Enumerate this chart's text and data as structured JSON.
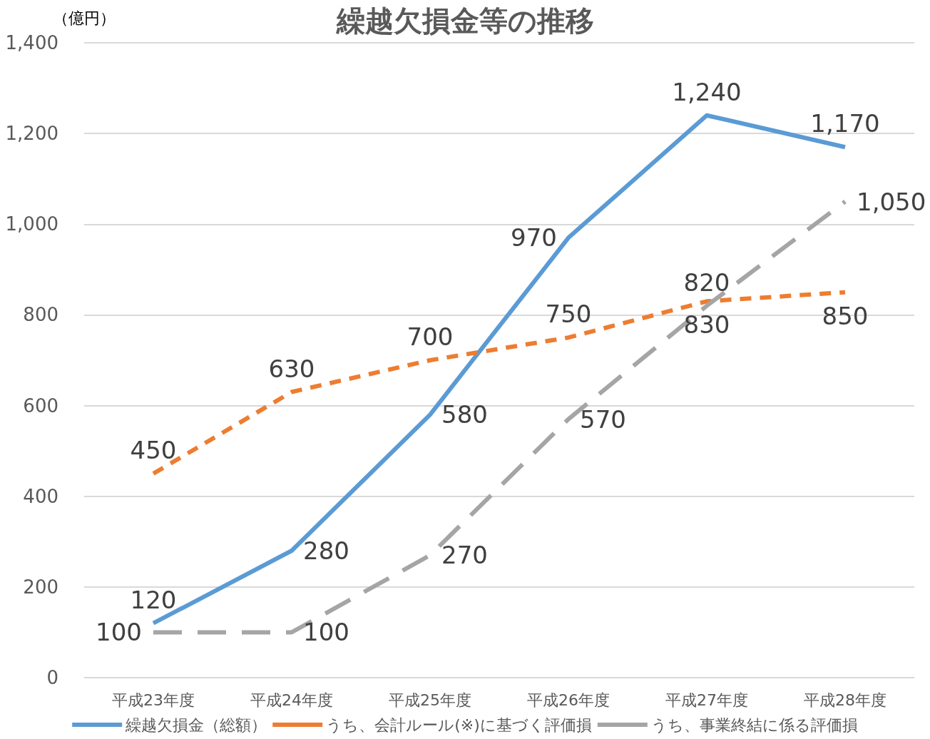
{
  "chart_data": {
    "type": "line",
    "title": "繰越欠損金等の推移",
    "ylabel": "（億円）",
    "categories": [
      "平成23年度",
      "平成24年度",
      "平成25年度",
      "平成26年度",
      "平成27年度",
      "平成28年度"
    ],
    "series": [
      {
        "name": "繰越欠損金（総額）",
        "color": "#5b9bd5",
        "line_style": "solid",
        "values": [
          120,
          280,
          580,
          970,
          1240,
          1170
        ],
        "value_labels": [
          "120",
          "280",
          "580",
          "970",
          "1,240",
          "1,170"
        ]
      },
      {
        "name": "うち、会計ルール(※)に基づく評価損",
        "color": "#ed7d31",
        "line_style": "dashed",
        "values": [
          450,
          630,
          700,
          750,
          830,
          850
        ],
        "value_labels": [
          "450",
          "630",
          "700",
          "750",
          "830",
          "850"
        ]
      },
      {
        "name": "うち、事業終結に係る評価損",
        "color": "#a5a5a5",
        "line_style": "dashed",
        "values": [
          100,
          100,
          270,
          570,
          820,
          1050
        ],
        "value_labels": [
          "100",
          "100",
          "270",
          "570",
          "820",
          "1,050"
        ]
      }
    ],
    "ylim": [
      0,
      1400
    ],
    "yticks": [
      0,
      200,
      400,
      600,
      800,
      {
        "value": 1000,
        "label": "1,000"
      },
      {
        "value": 1200,
        "label": "1,200"
      },
      {
        "value": 1400,
        "label": "1,400"
      }
    ],
    "grid": "y",
    "legend": "bottom",
    "marker": "none"
  }
}
